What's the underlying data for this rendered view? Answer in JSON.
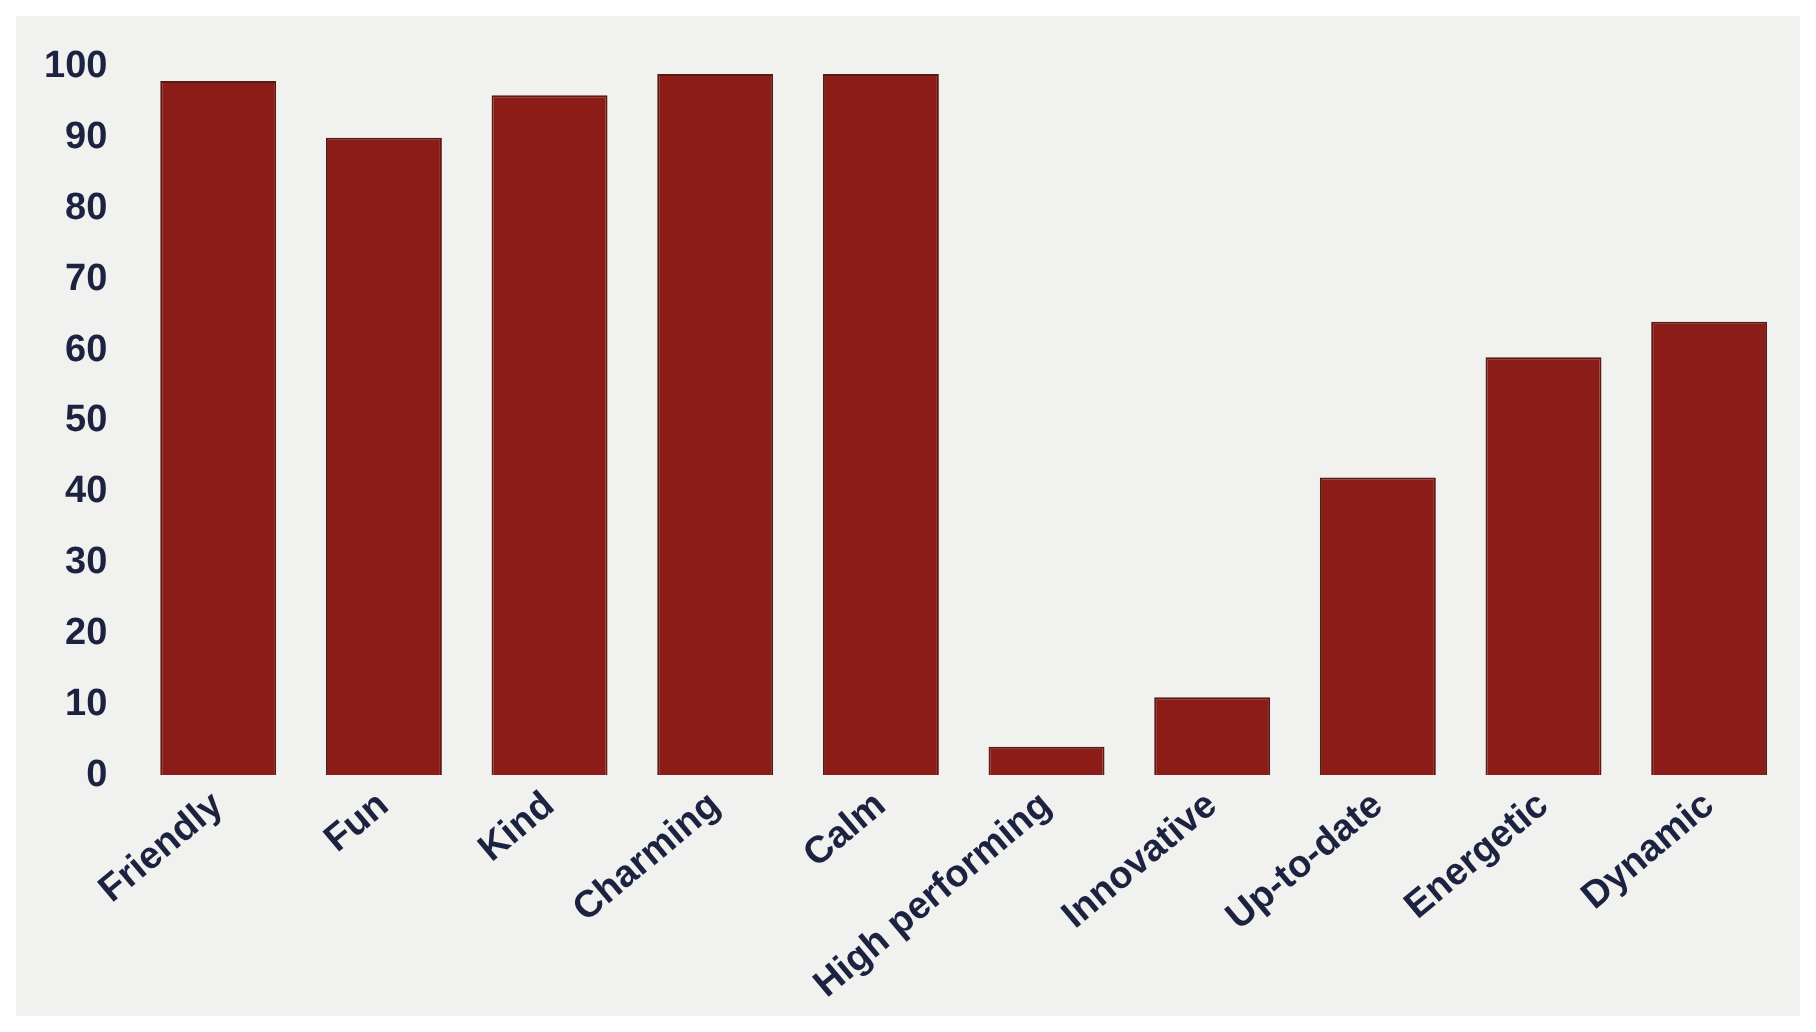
{
  "chart_data": {
    "type": "bar",
    "categories": [
      "Friendly",
      "Fun",
      "Kind",
      "Charming",
      "Calm",
      "High performing",
      "Innovative",
      "Up-to-date",
      "Energetic",
      "Dynamic"
    ],
    "values": [
      98,
      90,
      96,
      99,
      99,
      4,
      11,
      42,
      59,
      64
    ],
    "color": "#8b1c17",
    "ylim": [
      0,
      100
    ],
    "yticks": [
      0,
      10,
      20,
      30,
      40,
      50,
      60,
      70,
      80,
      90,
      100
    ],
    "grid": false,
    "legend": false
  }
}
